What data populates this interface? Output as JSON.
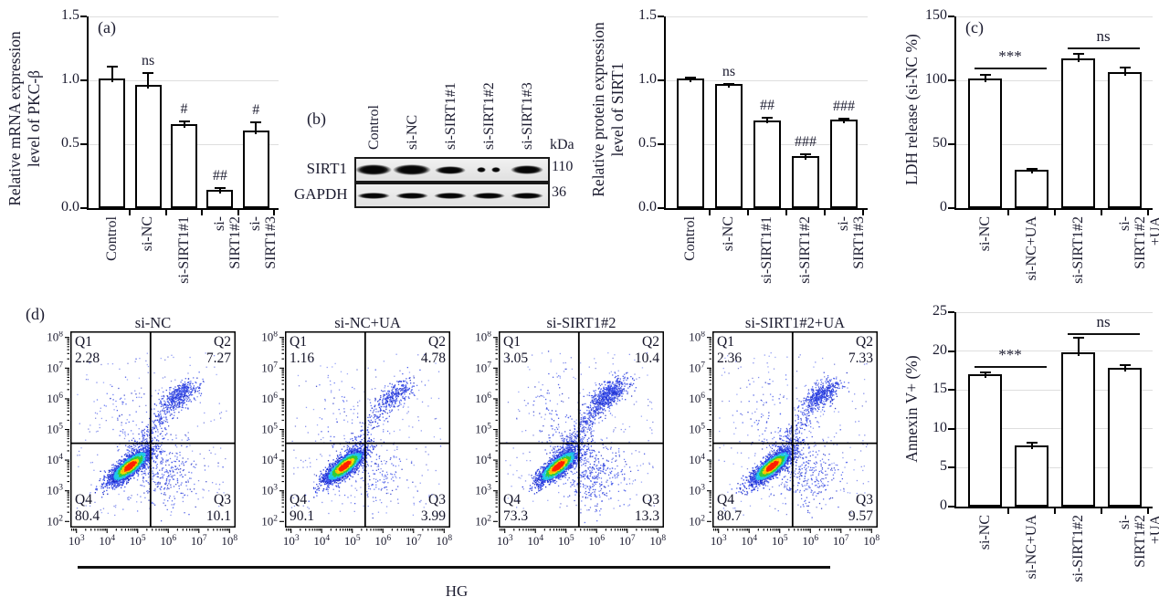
{
  "flow_section_label": "(d)",
  "hg_label": "HG",
  "blot": {
    "panel_label": "(b)",
    "lanes": [
      "Control",
      "si-NC",
      "si-SIRT1#1",
      "si-SIRT1#2",
      "si-SIRT1#3"
    ],
    "unit_label": "kDa",
    "rows": [
      {
        "protein": "SIRT1",
        "kda": "110",
        "bands": [
          {
            "w": 40,
            "h": 12
          },
          {
            "w": 42,
            "h": 12
          },
          {
            "w": 34,
            "h": 9
          },
          {
            "w": 26,
            "h": 6,
            "split": true
          },
          {
            "w": 36,
            "h": 10
          }
        ]
      },
      {
        "protein": "GAPDH",
        "kda": "36",
        "bands": [
          {
            "w": 36,
            "h": 7
          },
          {
            "w": 36,
            "h": 7
          },
          {
            "w": 36,
            "h": 7
          },
          {
            "w": 36,
            "h": 7
          },
          {
            "w": 36,
            "h": 7
          }
        ]
      }
    ]
  },
  "chart_data": [
    {
      "id": "pkc-mrna",
      "type": "bar",
      "panel_label": "(a)",
      "ylabel_line1": "Relative mRNA expression",
      "ylabel_line2": "level of PKC-β",
      "categories": [
        "Control",
        "si-NC",
        "si-SIRT1#1",
        "si-SIRT1#2",
        "si-SIRT1#3"
      ],
      "values": [
        1.0,
        0.95,
        0.64,
        0.13,
        0.59
      ],
      "errors": [
        0.11,
        0.11,
        0.04,
        0.025,
        0.08
      ],
      "annotations": [
        "",
        "ns",
        "#",
        "##",
        "#"
      ],
      "ylim": [
        0,
        1.5
      ],
      "yticks": [
        0,
        0.5,
        1,
        1.5
      ],
      "ytick_labels": [
        "0.0",
        "0.5",
        "1.0",
        "1.5"
      ],
      "grid": true,
      "sig_brackets": []
    },
    {
      "id": "sirt1-protein",
      "type": "bar",
      "panel_label": "",
      "ylabel_line1": "Relative protein expression",
      "ylabel_line2": "level of SIRT1",
      "categories": [
        "Control",
        "si-NC",
        "si-SIRT1#1",
        "si-SIRT1#2",
        "si-SIRT1#3"
      ],
      "values": [
        1.0,
        0.955,
        0.675,
        0.39,
        0.68
      ],
      "errors": [
        0.025,
        0.02,
        0.03,
        0.035,
        0.02
      ],
      "annotations": [
        "",
        "ns",
        "##",
        "###",
        "###"
      ],
      "ylim": [
        0,
        1.5
      ],
      "yticks": [
        0,
        0.5,
        1,
        1.5
      ],
      "ytick_labels": [
        "0.0",
        "0.5",
        "1.0",
        "1.5"
      ],
      "grid": true,
      "sig_brackets": []
    },
    {
      "id": "ldh-release",
      "type": "bar",
      "panel_label": "(c)",
      "ylabel": "LDH release (si-NC %)",
      "categories": [
        "si-NC",
        "si-NC+UA",
        "si-SIRT1#2",
        "si-SIRT1#2\n+UA"
      ],
      "values": [
        100,
        28.5,
        116,
        105
      ],
      "errors": [
        4,
        2,
        5,
        5
      ],
      "annotations": [
        "",
        "",
        "",
        ""
      ],
      "ylim": [
        0,
        150
      ],
      "yticks": [
        0,
        50,
        100,
        150
      ],
      "ytick_labels": [
        "0",
        "50",
        "100",
        "150"
      ],
      "grid": true,
      "sig_brackets": [
        {
          "from": 0,
          "to": 1,
          "label": "***",
          "y_value": 109
        },
        {
          "from": 2,
          "to": 3,
          "label": "ns",
          "y_value": 125
        }
      ]
    },
    {
      "id": "annexin-v",
      "type": "bar",
      "panel_label": "",
      "ylabel": "Annexin V+ (%)",
      "categories": [
        "si-NC",
        "si-NC+UA",
        "si-SIRT1#2",
        "si-SIRT1#2\n+UA"
      ],
      "values": [
        16.8,
        7.6,
        19.6,
        17.6
      ],
      "errors": [
        0.5,
        0.6,
        2.1,
        0.6
      ],
      "annotations": [
        "",
        "",
        "",
        ""
      ],
      "ylim": [
        0,
        25
      ],
      "yticks": [
        0,
        5,
        10,
        15,
        20,
        25
      ],
      "ytick_labels": [
        "0",
        "5",
        "10",
        "15",
        "20",
        "25"
      ],
      "grid": true,
      "sig_brackets": [
        {
          "from": 0,
          "to": 1,
          "label": "***",
          "y_value": 18
        },
        {
          "from": 2,
          "to": 3,
          "label": "ns",
          "y_value": 22.2
        }
      ]
    },
    {
      "id": "flow-si-nc",
      "type": "flow-scatter",
      "title": "si-NC",
      "x_exponents": [
        3,
        4,
        5,
        6,
        7,
        8
      ],
      "y_exponents": [
        2,
        3,
        4,
        5,
        6,
        7,
        8
      ],
      "x_log_range": [
        2.8,
        8.2
      ],
      "y_log_range": [
        1.8,
        8.2
      ],
      "gate_log_x": 5.42,
      "gate_log_y": 4.55,
      "seed": 11,
      "quadrants": {
        "q1_label": "Q1",
        "q1_value": "2.28",
        "q2_label": "Q2",
        "q2_value": "7.27",
        "q3_label": "Q3",
        "q3_value": "10.1",
        "q4_label": "Q4",
        "q4_value": "80.4"
      }
    },
    {
      "id": "flow-si-nc-ua",
      "type": "flow-scatter",
      "title": "si-NC+UA",
      "x_exponents": [
        3,
        4,
        5,
        6,
        7,
        8
      ],
      "y_exponents": [
        2,
        3,
        4,
        5,
        6,
        7,
        8
      ],
      "x_log_range": [
        2.8,
        8.2
      ],
      "y_log_range": [
        1.8,
        8.2
      ],
      "gate_log_x": 5.42,
      "gate_log_y": 4.55,
      "seed": 22,
      "quadrants": {
        "q1_label": "Q1",
        "q1_value": "1.16",
        "q2_label": "Q2",
        "q2_value": "4.78",
        "q3_label": "Q3",
        "q3_value": "3.99",
        "q4_label": "Q4",
        "q4_value": "90.1"
      }
    },
    {
      "id": "flow-si-sirt1-2",
      "type": "flow-scatter",
      "title": "si-SIRT1#2",
      "x_exponents": [
        3,
        4,
        5,
        6,
        7,
        8
      ],
      "y_exponents": [
        2,
        3,
        4,
        5,
        6,
        7,
        8
      ],
      "x_log_range": [
        2.8,
        8.2
      ],
      "y_log_range": [
        1.8,
        8.2
      ],
      "gate_log_x": 5.42,
      "gate_log_y": 4.55,
      "seed": 33,
      "quadrants": {
        "q1_label": "Q1",
        "q1_value": "3.05",
        "q2_label": "Q2",
        "q2_value": "10.4",
        "q3_label": "Q3",
        "q3_value": "13.3",
        "q4_label": "Q4",
        "q4_value": "73.3"
      }
    },
    {
      "id": "flow-si-sirt1-2-ua",
      "type": "flow-scatter",
      "title": "si-SIRT1#2+UA",
      "x_exponents": [
        3,
        4,
        5,
        6,
        7,
        8
      ],
      "y_exponents": [
        2,
        3,
        4,
        5,
        6,
        7,
        8
      ],
      "x_log_range": [
        2.8,
        8.2
      ],
      "y_log_range": [
        1.8,
        8.2
      ],
      "gate_log_x": 5.42,
      "gate_log_y": 4.55,
      "seed": 44,
      "quadrants": {
        "q1_label": "Q1",
        "q1_value": "2.36",
        "q2_label": "Q2",
        "q2_value": "7.33",
        "q3_label": "Q3",
        "q3_value": "9.57",
        "q4_label": "Q4",
        "q4_value": "80.7"
      }
    }
  ],
  "colors": {
    "text": "#1b1b2f",
    "line": "#000000",
    "grid": "#dedede",
    "dot_blue": "#2638e0",
    "dot_cyan": "#1ec8e8",
    "dot_green": "#35cc35",
    "dot_yellow": "#ffe000",
    "dot_orange": "#ffb300",
    "dot_red": "#ff2000"
  }
}
